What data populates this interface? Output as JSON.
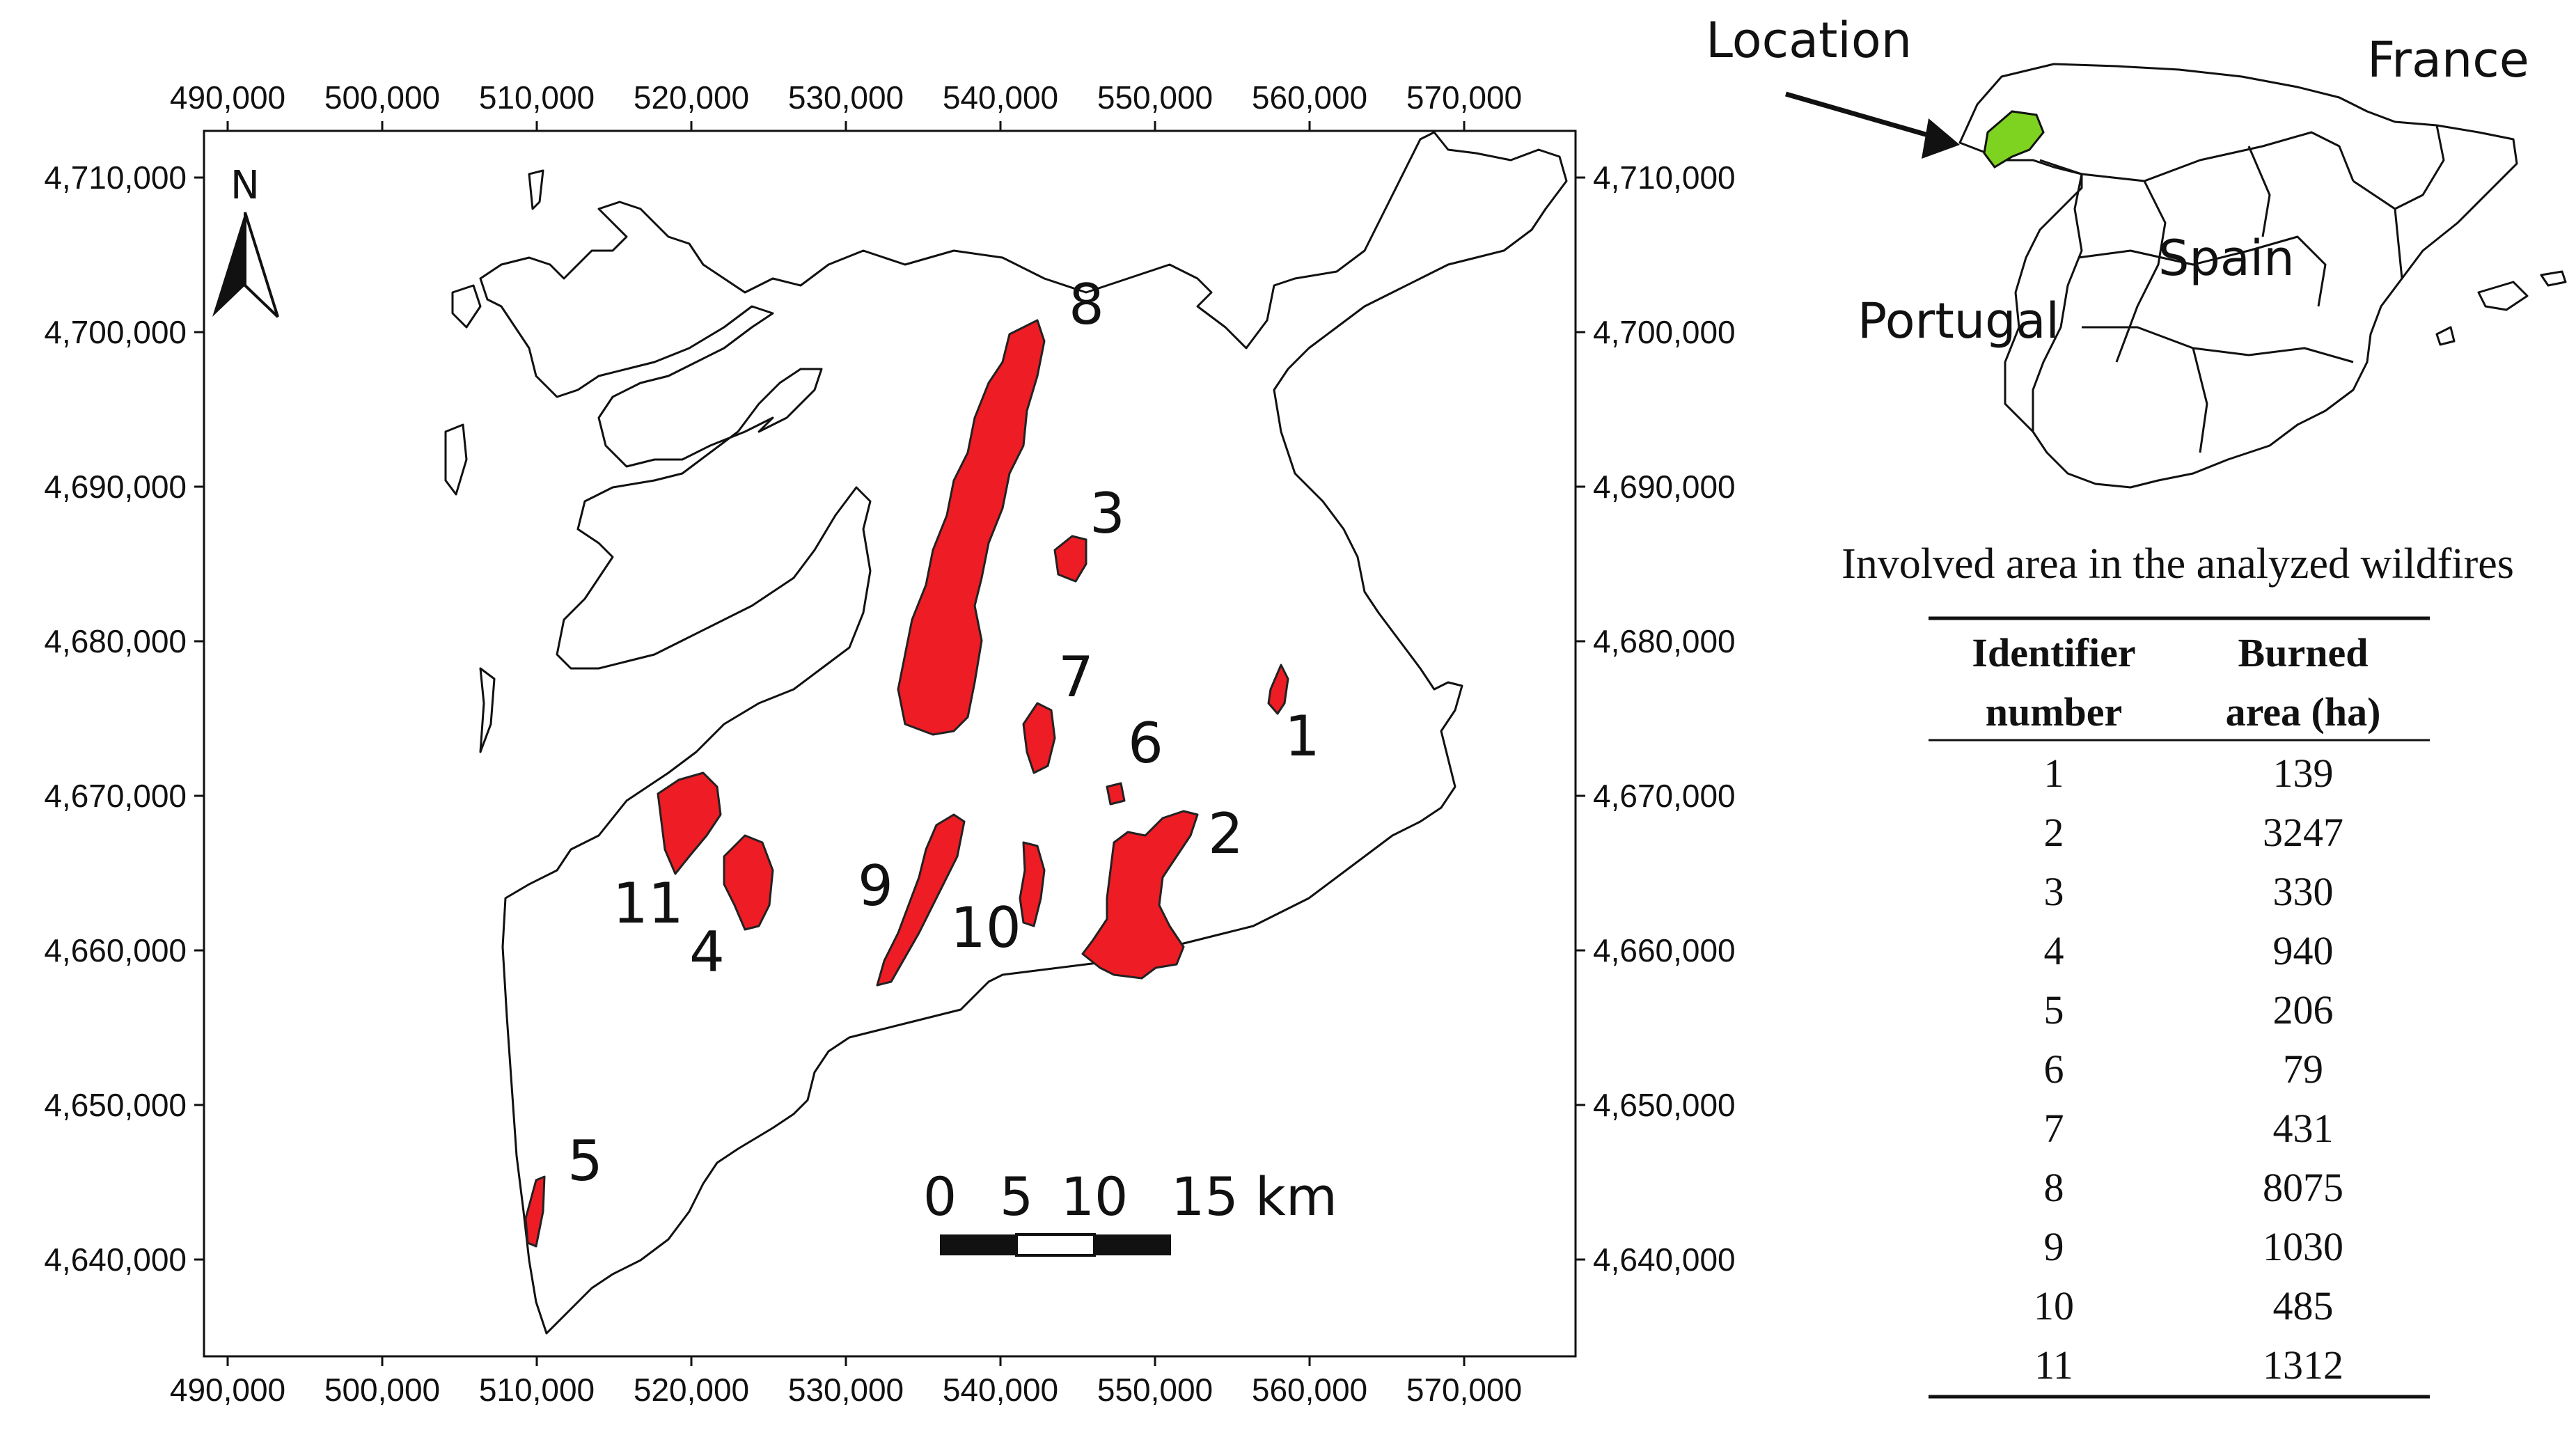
{
  "map": {
    "x_ticks": [
      "490,000",
      "500,000",
      "510,000",
      "520,000",
      "530,000",
      "540,000",
      "550,000",
      "560,000",
      "570,000"
    ],
    "y_ticks": [
      "4,710,000",
      "4,700,000",
      "4,690,000",
      "4,680,000",
      "4,670,000",
      "4,660,000",
      "4,650,000",
      "4,640,000"
    ],
    "north_label": "N",
    "scale_bar": {
      "labels": [
        "0",
        "5",
        "10",
        "15 km"
      ]
    },
    "fire_labels": [
      "1",
      "2",
      "3",
      "4",
      "5",
      "6",
      "7",
      "8",
      "9",
      "10",
      "11"
    ],
    "fill_color": "#ee1c24"
  },
  "inset": {
    "location_label": "Location",
    "countries": [
      "France",
      "Spain",
      "Portugal"
    ],
    "highlight_color": "#7ed321"
  },
  "table": {
    "caption": "Involved area in the analyzed wildfires",
    "headers": [
      [
        "Identifier",
        "number"
      ],
      [
        "Burned",
        "area (ha)"
      ]
    ],
    "rows": [
      [
        "1",
        "139"
      ],
      [
        "2",
        "3247"
      ],
      [
        "3",
        "330"
      ],
      [
        "4",
        "940"
      ],
      [
        "5",
        "206"
      ],
      [
        "6",
        "79"
      ],
      [
        "7",
        "431"
      ],
      [
        "8",
        "8075"
      ],
      [
        "9",
        "1030"
      ],
      [
        "10",
        "485"
      ],
      [
        "11",
        "1312"
      ]
    ]
  }
}
